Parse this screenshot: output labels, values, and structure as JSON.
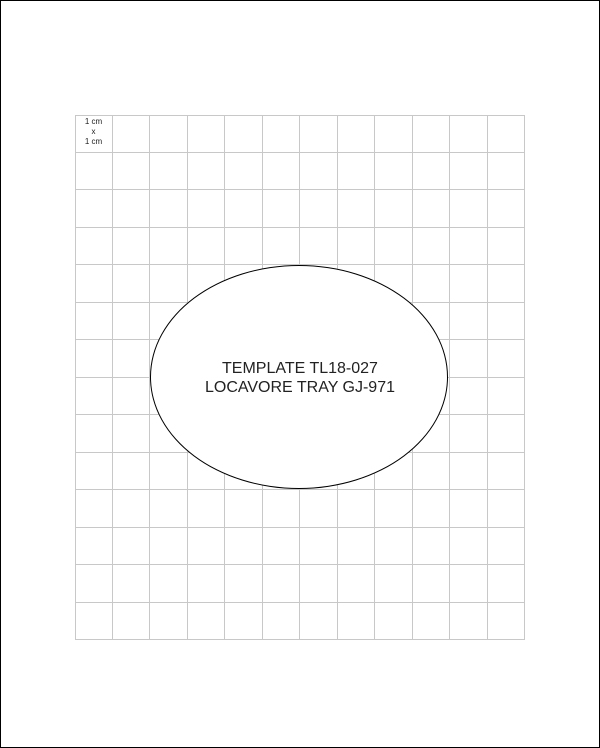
{
  "scale_label": {
    "line1": "1 cm",
    "line2": "x",
    "line3": "1 cm"
  },
  "grid": {
    "columns": 12,
    "rows": 14
  },
  "template": {
    "line1": "TEMPLATE TL18-027",
    "line2": "LOCAVORE TRAY GJ-971"
  }
}
